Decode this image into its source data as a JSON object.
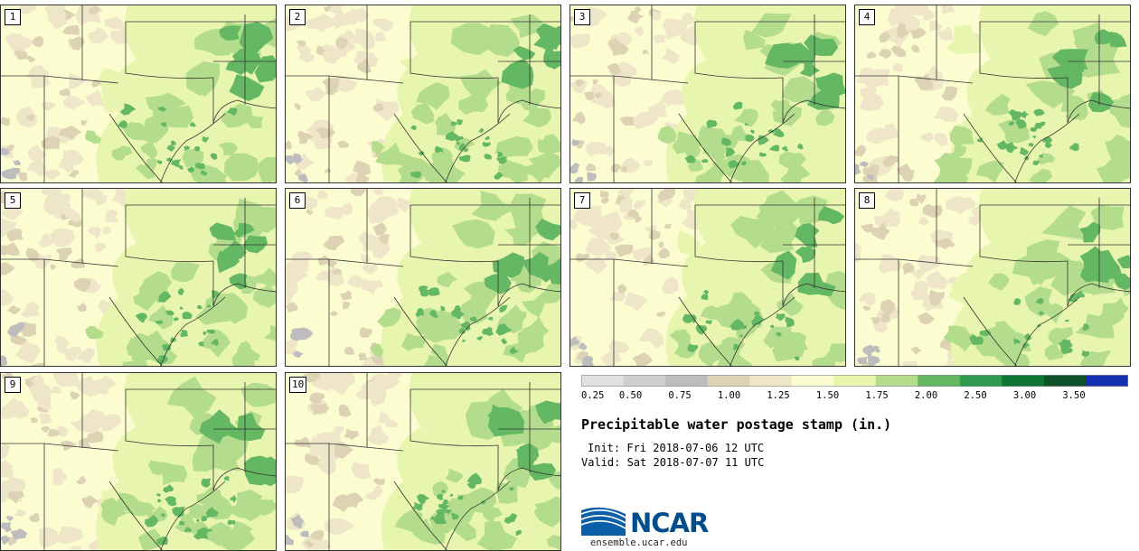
{
  "panels": [
    {
      "label": "1"
    },
    {
      "label": "2"
    },
    {
      "label": "3"
    },
    {
      "label": "4"
    },
    {
      "label": "5"
    },
    {
      "label": "6"
    },
    {
      "label": "7"
    },
    {
      "label": "8"
    },
    {
      "label": "9"
    },
    {
      "label": "10"
    }
  ],
  "colorbar": {
    "colors": [
      "#e0e0e0",
      "#cfcfcf",
      "#bdbdbd",
      "#ddd2b4",
      "#efe5c9",
      "#fbfdd0",
      "#e7f5ae",
      "#b3dd8c",
      "#64b864",
      "#2f9a4f",
      "#0f7535",
      "#0d5229",
      "#1430b0"
    ],
    "labels": [
      "0.25",
      "0.50",
      "0.75",
      "1.00",
      "1.25",
      "1.50",
      "1.75",
      "2.00",
      "2.50",
      "3.00",
      "3.50"
    ]
  },
  "title": "Precipitable water postage stamp (in.)",
  "init": "Init: Fri 2018-07-06 12 UTC",
  "valid": "Valid: Sat 2018-07-07 11 UTC",
  "logo": {
    "text": "NCAR",
    "icon": "ncar-logo-icon",
    "color": "#004c8c"
  },
  "site": "ensemble.ucar.edu"
}
